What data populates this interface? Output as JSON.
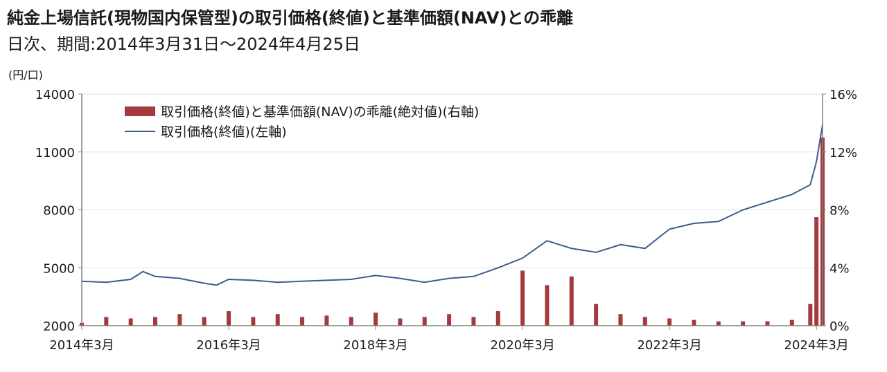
{
  "header": {
    "title": "純金上場信託(現物国内保管型)の取引価格(終値)と基準価額(NAV)との乖離",
    "subtitle": "日次、期間:2014年3月31日～2024年4月25日"
  },
  "colors": {
    "price_line": "#3d5a8e",
    "deviation_bar": "#a23a3f",
    "axis": "#808080",
    "grid": "#e3e3e3"
  },
  "chart_data": {
    "type": "line",
    "title": "純金上場信託(現物国内保管型)の取引価格(終値)と基準価額(NAV)との乖離",
    "left_unit_label": "(円/口)",
    "y_left": {
      "range": [
        2000,
        14000
      ],
      "ticks": [
        "2000",
        "5000",
        "8000",
        "11000",
        "14000"
      ]
    },
    "y_right": {
      "range": [
        0,
        16
      ],
      "unit": "%",
      "ticks": [
        "0%",
        "4%",
        "8%",
        "12%",
        "16%"
      ]
    },
    "x_ticks": [
      "2014年3月",
      "2016年3月",
      "2018年3月",
      "2020年3月",
      "2022年3月",
      "2024年3月"
    ],
    "x_range": [
      "2014-03",
      "2024-04"
    ],
    "grid": "horizontal",
    "legend_position": "top-left",
    "series": [
      {
        "name": "取引価格(終値)と基準価額(NAV)の乖離(絶対値)(右軸)",
        "type": "bar",
        "axis": "right",
        "points": [
          [
            "2014-03",
            0.2
          ],
          [
            "2014-07",
            0.6
          ],
          [
            "2014-11",
            0.5
          ],
          [
            "2015-03",
            0.6
          ],
          [
            "2015-07",
            0.8
          ],
          [
            "2015-11",
            0.6
          ],
          [
            "2016-03",
            1.0
          ],
          [
            "2016-07",
            0.6
          ],
          [
            "2016-11",
            0.8
          ],
          [
            "2017-03",
            0.6
          ],
          [
            "2017-07",
            0.7
          ],
          [
            "2017-11",
            0.6
          ],
          [
            "2018-03",
            0.9
          ],
          [
            "2018-07",
            0.5
          ],
          [
            "2018-11",
            0.6
          ],
          [
            "2019-03",
            0.8
          ],
          [
            "2019-07",
            0.6
          ],
          [
            "2019-11",
            1.0
          ],
          [
            "2020-03",
            3.8
          ],
          [
            "2020-07",
            2.8
          ],
          [
            "2020-11",
            3.4
          ],
          [
            "2021-03",
            1.5
          ],
          [
            "2021-07",
            0.8
          ],
          [
            "2021-11",
            0.6
          ],
          [
            "2022-03",
            0.5
          ],
          [
            "2022-07",
            0.4
          ],
          [
            "2022-11",
            0.3
          ],
          [
            "2023-03",
            0.3
          ],
          [
            "2023-07",
            0.3
          ],
          [
            "2023-11",
            0.4
          ],
          [
            "2024-02",
            1.5
          ],
          [
            "2024-03",
            7.5
          ],
          [
            "2024-04",
            13.0
          ]
        ]
      },
      {
        "name": "取引価格(終値)(左軸)",
        "type": "line",
        "axis": "left",
        "points": [
          [
            "2014-03",
            4300
          ],
          [
            "2014-07",
            4250
          ],
          [
            "2014-11",
            4400
          ],
          [
            "2015-01",
            4800
          ],
          [
            "2015-03",
            4550
          ],
          [
            "2015-07",
            4450
          ],
          [
            "2015-11",
            4200
          ],
          [
            "2016-01",
            4100
          ],
          [
            "2016-03",
            4400
          ],
          [
            "2016-07",
            4350
          ],
          [
            "2016-11",
            4250
          ],
          [
            "2017-03",
            4300
          ],
          [
            "2017-07",
            4350
          ],
          [
            "2017-11",
            4400
          ],
          [
            "2018-03",
            4600
          ],
          [
            "2018-07",
            4450
          ],
          [
            "2018-11",
            4250
          ],
          [
            "2019-03",
            4450
          ],
          [
            "2019-07",
            4550
          ],
          [
            "2019-11",
            5000
          ],
          [
            "2020-03",
            5500
          ],
          [
            "2020-07",
            6400
          ],
          [
            "2020-11",
            6000
          ],
          [
            "2021-03",
            5800
          ],
          [
            "2021-07",
            6200
          ],
          [
            "2021-11",
            6000
          ],
          [
            "2022-03",
            7000
          ],
          [
            "2022-07",
            7300
          ],
          [
            "2022-11",
            7400
          ],
          [
            "2023-03",
            8000
          ],
          [
            "2023-07",
            8400
          ],
          [
            "2023-11",
            8800
          ],
          [
            "2024-02",
            9300
          ],
          [
            "2024-03",
            10500
          ],
          [
            "2024-04",
            12400
          ]
        ]
      }
    ]
  }
}
